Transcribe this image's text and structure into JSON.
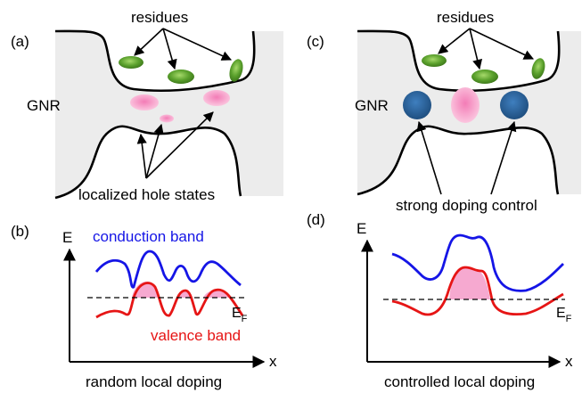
{
  "panels": {
    "a": {
      "label": "(a)",
      "top_annotation": "residues",
      "ribbon_label": "GNR",
      "bottom_annotation": "localized hole states"
    },
    "b": {
      "label": "(b)",
      "y_axis": "E",
      "x_axis": "x",
      "upper_curve_label": "conduction band",
      "lower_curve_label": "valence band",
      "fermi_label": "E",
      "fermi_subscript": "F",
      "caption": "random local doping"
    },
    "c": {
      "label": "(c)",
      "top_annotation": "residues",
      "ribbon_label": "GNR",
      "bottom_annotation": "strong doping control"
    },
    "d": {
      "label": "(d)",
      "y_axis": "E",
      "x_axis": "x",
      "fermi_label": "E",
      "fermi_subscript": "F",
      "caption": "controlled local doping"
    }
  },
  "colors": {
    "ribbon_fill": "#ececec",
    "residue": "#5aa02c",
    "hole_state": "#f59ac8",
    "doping_gate": "#2f6496",
    "conduction_band": "#1515e6",
    "valence_band": "#e61515",
    "fermi_line": "#000000"
  }
}
